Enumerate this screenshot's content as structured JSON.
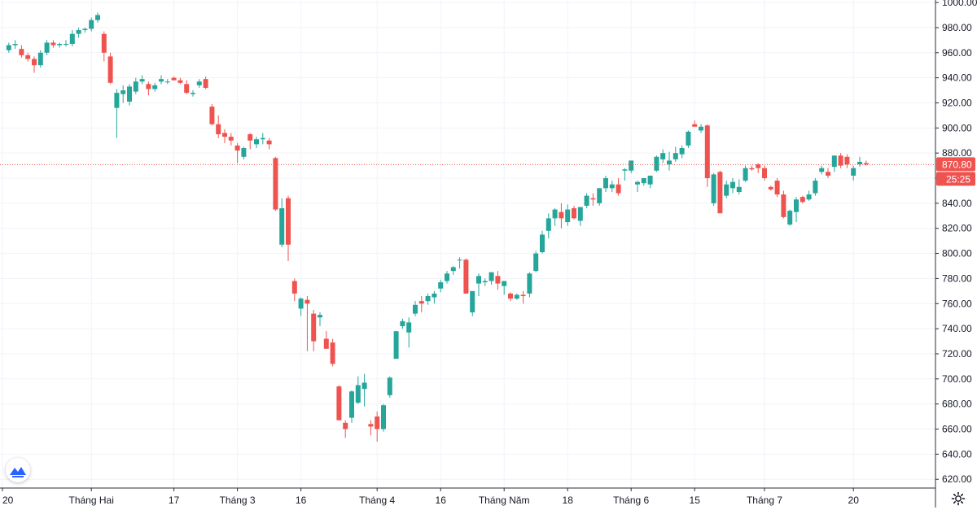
{
  "colors": {
    "up": "#26a69a",
    "down": "#ef5350",
    "grid": "#f0f3fa",
    "axis_line": "#2a2e39",
    "price_line": "#ef5350",
    "logo": "#2962ff"
  },
  "chart_data": {
    "type": "candlestick",
    "title": "",
    "ylim": [
      613,
      1002
    ],
    "y_ticks": [
      "1000.00",
      "980.00",
      "960.00",
      "940.00",
      "920.00",
      "900.00",
      "880.00",
      "860.00",
      "840.00",
      "820.00",
      "800.00",
      "780.00",
      "760.00",
      "740.00",
      "720.00",
      "700.00",
      "680.00",
      "660.00",
      "640.00",
      "620.00"
    ],
    "time_ticks": [
      {
        "label": "20",
        "index": 0
      },
      {
        "label": "Tháng Hai",
        "index": 14
      },
      {
        "label": "17",
        "index": 27
      },
      {
        "label": "Tháng 3",
        "index": 37
      },
      {
        "label": "16",
        "index": 47
      },
      {
        "label": "Tháng 4",
        "index": 59
      },
      {
        "label": "16",
        "index": 69
      },
      {
        "label": "Tháng Năm",
        "index": 79
      },
      {
        "label": "18",
        "index": 89
      },
      {
        "label": "Tháng 6",
        "index": 99
      },
      {
        "label": "15",
        "index": 109
      },
      {
        "label": "Tháng 7",
        "index": 120
      },
      {
        "label": "20",
        "index": 134
      }
    ],
    "ohlc": [
      [
        1,
        962,
        968,
        960,
        966
      ],
      [
        2,
        966,
        970,
        963,
        967
      ],
      [
        3,
        963,
        966,
        956,
        958
      ],
      [
        4,
        958,
        960,
        953,
        955
      ],
      [
        5,
        955,
        957,
        944,
        950
      ],
      [
        6,
        950,
        962,
        948,
        960
      ],
      [
        7,
        960,
        970,
        958,
        968
      ],
      [
        8,
        968,
        970,
        964,
        966
      ],
      [
        9,
        966,
        968,
        964,
        967
      ],
      [
        10,
        967,
        970,
        965,
        967
      ],
      [
        11,
        967,
        978,
        965,
        975
      ],
      [
        12,
        975,
        980,
        972,
        978
      ],
      [
        13,
        978,
        980,
        976,
        979
      ],
      [
        14,
        979,
        988,
        977,
        986
      ],
      [
        15,
        986,
        992,
        984,
        990
      ],
      [
        16,
        975,
        977,
        953,
        960
      ],
      [
        17,
        957,
        960,
        935,
        936
      ],
      [
        18,
        916,
        931,
        892,
        928
      ],
      [
        19,
        927,
        934,
        920,
        930
      ],
      [
        20,
        921,
        935,
        918,
        933
      ],
      [
        21,
        929,
        940,
        927,
        937
      ],
      [
        22,
        937,
        942,
        935,
        939
      ],
      [
        23,
        935,
        937,
        926,
        931
      ],
      [
        24,
        931,
        936,
        929,
        934
      ],
      [
        25,
        937,
        942,
        935,
        939
      ],
      [
        26,
        937,
        939,
        935,
        937
      ],
      [
        27,
        940,
        941,
        938,
        938
      ],
      [
        28,
        938,
        940,
        935,
        936
      ],
      [
        29,
        935,
        938,
        927,
        928
      ],
      [
        30,
        927,
        930,
        925,
        928
      ],
      [
        31,
        934,
        939,
        932,
        937
      ],
      [
        32,
        939,
        941,
        931,
        932
      ],
      [
        33,
        917,
        919,
        902,
        903
      ],
      [
        34,
        903,
        910,
        892,
        895
      ],
      [
        35,
        896,
        899,
        888,
        893
      ],
      [
        36,
        893,
        896,
        886,
        890
      ],
      [
        37,
        886,
        888,
        872,
        882
      ],
      [
        38,
        877,
        885,
        875,
        884
      ],
      [
        39,
        895,
        896,
        883,
        890
      ],
      [
        40,
        887,
        893,
        884,
        891
      ],
      [
        41,
        891,
        896,
        887,
        892
      ],
      [
        42,
        890,
        892,
        883,
        887
      ],
      [
        43,
        876,
        877,
        834,
        835
      ],
      [
        44,
        807,
        844,
        805,
        836
      ],
      [
        45,
        844,
        846,
        794,
        807
      ],
      [
        46,
        778,
        780,
        762,
        768
      ],
      [
        47,
        756,
        765,
        750,
        764
      ],
      [
        48,
        763,
        766,
        722,
        760
      ],
      [
        49,
        752,
        755,
        722,
        730
      ],
      [
        50,
        749,
        753,
        742,
        751
      ],
      [
        51,
        732,
        738,
        725,
        724
      ],
      [
        52,
        729,
        732,
        710,
        712
      ],
      [
        53,
        694,
        695,
        668,
        667
      ],
      [
        54,
        665,
        667,
        653,
        660
      ],
      [
        55,
        669,
        691,
        665,
        690
      ],
      [
        56,
        681,
        702,
        680,
        695
      ],
      [
        57,
        692,
        704,
        678,
        697
      ],
      [
        58,
        664,
        667,
        655,
        662
      ],
      [
        59,
        670,
        674,
        650,
        660
      ],
      [
        60,
        660,
        680,
        658,
        679
      ],
      [
        61,
        687,
        702,
        685,
        701
      ],
      [
        62,
        716,
        738,
        716,
        738
      ],
      [
        63,
        742,
        748,
        740,
        746
      ],
      [
        64,
        737,
        749,
        725,
        745
      ],
      [
        65,
        752,
        762,
        750,
        759
      ],
      [
        66,
        762,
        766,
        753,
        760
      ],
      [
        67,
        762,
        768,
        759,
        766
      ],
      [
        68,
        765,
        770,
        760,
        768
      ],
      [
        69,
        772,
        779,
        769,
        777
      ],
      [
        70,
        778,
        786,
        776,
        784
      ],
      [
        71,
        786,
        790,
        783,
        789
      ],
      [
        72,
        795,
        797,
        788,
        795
      ],
      [
        73,
        795,
        796,
        770,
        768
      ],
      [
        74,
        753,
        770,
        750,
        770
      ],
      [
        75,
        776,
        784,
        766,
        782
      ],
      [
        76,
        777,
        780,
        774,
        778
      ],
      [
        77,
        778,
        785,
        775,
        785
      ],
      [
        78,
        782,
        786,
        771,
        776
      ],
      [
        79,
        774,
        776,
        767,
        778
      ],
      [
        80,
        768,
        769,
        762,
        764
      ],
      [
        81,
        764,
        768,
        763,
        767
      ],
      [
        82,
        767,
        770,
        760,
        766
      ],
      [
        83,
        768,
        785,
        765,
        784
      ],
      [
        84,
        786,
        802,
        785,
        800
      ],
      [
        85,
        801,
        818,
        800,
        815
      ],
      [
        86,
        818,
        832,
        812,
        828
      ],
      [
        87,
        828,
        836,
        822,
        835
      ],
      [
        88,
        833,
        840,
        820,
        828
      ],
      [
        89,
        825,
        839,
        822,
        835
      ],
      [
        90,
        836,
        838,
        827,
        828
      ],
      [
        91,
        826,
        837,
        822,
        837
      ],
      [
        92,
        838,
        848,
        836,
        846
      ],
      [
        93,
        844,
        848,
        838,
        843
      ],
      [
        94,
        840,
        852,
        838,
        852
      ],
      [
        95,
        852,
        862,
        849,
        860
      ],
      [
        96,
        852,
        858,
        849,
        855
      ],
      [
        97,
        855,
        860,
        846,
        848
      ],
      [
        98,
        866,
        868,
        858,
        867
      ],
      [
        99,
        866,
        874,
        864,
        874
      ],
      [
        100,
        855,
        858,
        849,
        857
      ],
      [
        101,
        856,
        860,
        854,
        860
      ],
      [
        102,
        855,
        862,
        852,
        862
      ],
      [
        103,
        866,
        878,
        865,
        877
      ],
      [
        104,
        875,
        883,
        872,
        880
      ],
      [
        105,
        871,
        881,
        866,
        874
      ],
      [
        106,
        875,
        885,
        873,
        880
      ],
      [
        107,
        879,
        886,
        876,
        884
      ],
      [
        108,
        886,
        898,
        884,
        897
      ],
      [
        109,
        903,
        906,
        902,
        901
      ],
      [
        110,
        898,
        903,
        896,
        901
      ],
      [
        111,
        902,
        903,
        853,
        860
      ],
      [
        112,
        840,
        864,
        838,
        863
      ],
      [
        113,
        865,
        866,
        832,
        832
      ],
      [
        114,
        846,
        858,
        844,
        855
      ],
      [
        115,
        852,
        860,
        848,
        857
      ],
      [
        116,
        849,
        859,
        847,
        853
      ],
      [
        117,
        858,
        870,
        857,
        868
      ],
      [
        118,
        868,
        870,
        866,
        867
      ],
      [
        119,
        871,
        872,
        864,
        868
      ],
      [
        120,
        868,
        870,
        858,
        860
      ],
      [
        121,
        853,
        854,
        850,
        851
      ],
      [
        122,
        858,
        860,
        845,
        847
      ],
      [
        123,
        847,
        850,
        828,
        829
      ],
      [
        124,
        823,
        835,
        822,
        834
      ],
      [
        125,
        833,
        845,
        825,
        843
      ],
      [
        126,
        845,
        846,
        840,
        841
      ],
      [
        127,
        843,
        850,
        842,
        847
      ],
      [
        128,
        848,
        860,
        846,
        858
      ],
      [
        129,
        865,
        870,
        863,
        868
      ],
      [
        130,
        865,
        868,
        860,
        862
      ],
      [
        131,
        869,
        878,
        865,
        878
      ],
      [
        132,
        878,
        880,
        868,
        870
      ],
      [
        133,
        877,
        879,
        868,
        871
      ],
      [
        134,
        862,
        870,
        858,
        868
      ],
      [
        135,
        871,
        877,
        869,
        873
      ],
      [
        136,
        872,
        874,
        870,
        871
      ]
    ],
    "last_price": "870.80",
    "countdown": "25:25"
  }
}
